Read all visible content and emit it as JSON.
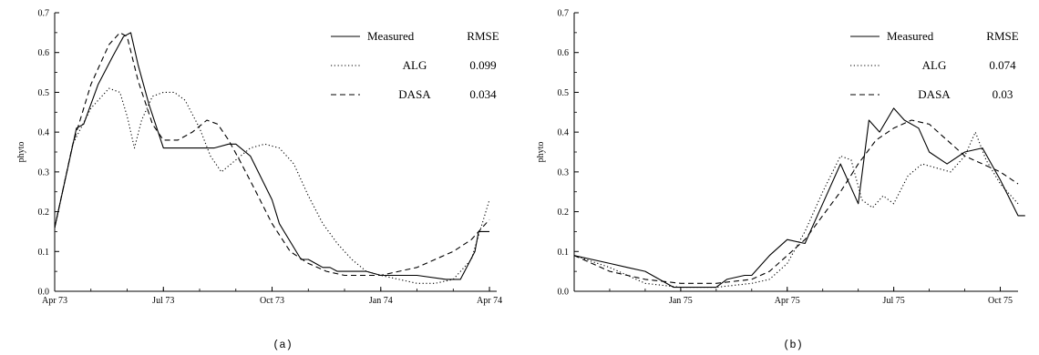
{
  "chart_data": [
    {
      "type": "line",
      "caption": "(a)",
      "ylabel": "phyto",
      "xlabel": "",
      "title": "",
      "x_unit": "months since Apr 73",
      "xlim": [
        0,
        12.2
      ],
      "ylim": [
        0,
        0.7
      ],
      "x_ticks": [
        {
          "x": 0,
          "label": "Apr 73"
        },
        {
          "x": 3,
          "label": "Jul 73"
        },
        {
          "x": 6,
          "label": "Oct 73"
        },
        {
          "x": 9,
          "label": "Jan 74"
        },
        {
          "x": 12,
          "label": "Apr 74"
        }
      ],
      "y_ticks": [
        "0.0",
        "0.1",
        "0.2",
        "0.3",
        "0.4",
        "0.5",
        "0.6",
        "0.7"
      ],
      "legend": {
        "header": "RMSE",
        "entries": [
          {
            "name": "Measured",
            "style": "solid",
            "rmse": ""
          },
          {
            "name": "ALG",
            "style": "dotted",
            "rmse": "0.099"
          },
          {
            "name": "DASA",
            "style": "dashed",
            "rmse": "0.034"
          }
        ]
      },
      "series": [
        {
          "name": "Measured",
          "style": "solid",
          "x": [
            0,
            0.6,
            0.8,
            1.2,
            1.6,
            1.9,
            2.1,
            2.3,
            2.6,
            3.0,
            3.4,
            4.0,
            4.4,
            4.8,
            5.0,
            5.4,
            6.0,
            6.2,
            6.8,
            7.0,
            7.2,
            7.4,
            7.6,
            7.8,
            8.0,
            8.6,
            9.0,
            9.6,
            10.0,
            10.8,
            11.2,
            11.6,
            11.7,
            12.0
          ],
          "y": [
            0.16,
            0.41,
            0.42,
            0.52,
            0.59,
            0.64,
            0.65,
            0.57,
            0.47,
            0.36,
            0.36,
            0.36,
            0.36,
            0.37,
            0.37,
            0.34,
            0.23,
            0.17,
            0.08,
            0.08,
            0.07,
            0.06,
            0.06,
            0.05,
            0.05,
            0.05,
            0.04,
            0.04,
            0.04,
            0.03,
            0.03,
            0.1,
            0.15,
            0.15
          ]
        },
        {
          "name": "ALG",
          "style": "dotted",
          "x": [
            0,
            0.5,
            1.0,
            1.5,
            1.8,
            2.0,
            2.2,
            2.4,
            2.7,
            3.0,
            3.3,
            3.6,
            4.0,
            4.3,
            4.6,
            5.0,
            5.4,
            5.8,
            6.2,
            6.6,
            7.0,
            7.4,
            7.8,
            8.2,
            8.6,
            9.0,
            9.5,
            10.0,
            10.5,
            11.0,
            11.5,
            12.0
          ],
          "y": [
            0.16,
            0.37,
            0.46,
            0.51,
            0.5,
            0.44,
            0.36,
            0.43,
            0.49,
            0.5,
            0.5,
            0.48,
            0.41,
            0.34,
            0.3,
            0.33,
            0.36,
            0.37,
            0.36,
            0.32,
            0.24,
            0.17,
            0.12,
            0.08,
            0.05,
            0.04,
            0.03,
            0.02,
            0.02,
            0.03,
            0.08,
            0.23
          ]
        },
        {
          "name": "DASA",
          "style": "dashed",
          "x": [
            0,
            0.5,
            1.0,
            1.5,
            1.8,
            2.0,
            2.3,
            2.7,
            3.0,
            3.4,
            3.8,
            4.2,
            4.5,
            4.8,
            5.1,
            5.5,
            6.0,
            6.5,
            7.0,
            7.5,
            8.0,
            8.5,
            9.0,
            9.5,
            10.0,
            10.5,
            11.0,
            11.5,
            12.0
          ],
          "y": [
            0.16,
            0.37,
            0.52,
            0.62,
            0.65,
            0.64,
            0.53,
            0.42,
            0.38,
            0.38,
            0.4,
            0.43,
            0.42,
            0.38,
            0.33,
            0.26,
            0.17,
            0.1,
            0.07,
            0.05,
            0.04,
            0.04,
            0.04,
            0.05,
            0.06,
            0.08,
            0.1,
            0.13,
            0.18
          ]
        }
      ]
    },
    {
      "type": "line",
      "caption": "(b)",
      "ylabel": "phyto",
      "xlabel": "",
      "title": "",
      "x_unit": "months since Oct 74",
      "xlim": [
        0,
        12.5
      ],
      "ylim": [
        0,
        0.7
      ],
      "x_ticks": [
        {
          "x": 3,
          "label": "Jan 75"
        },
        {
          "x": 6,
          "label": "Apr 75"
        },
        {
          "x": 9,
          "label": "Jul 75"
        },
        {
          "x": 12,
          "label": "Oct 75"
        }
      ],
      "y_ticks": [
        "0.0",
        "0.1",
        "0.2",
        "0.3",
        "0.4",
        "0.5",
        "0.6",
        "0.7"
      ],
      "legend": {
        "header": "RMSE",
        "entries": [
          {
            "name": "Measured",
            "style": "solid",
            "rmse": ""
          },
          {
            "name": "ALG",
            "style": "dotted",
            "rmse": "0.074"
          },
          {
            "name": "DASA",
            "style": "dashed",
            "rmse": "0.03"
          }
        ]
      },
      "series": [
        {
          "name": "Measured",
          "style": "solid",
          "x": [
            0,
            1.0,
            1.5,
            2.0,
            2.8,
            3.5,
            4.0,
            4.3,
            4.8,
            5.0,
            5.5,
            6.0,
            6.5,
            7.0,
            7.5,
            8.0,
            8.3,
            8.6,
            9.0,
            9.3,
            9.7,
            10.0,
            10.5,
            11.0,
            11.5,
            12.0,
            12.5,
            12.7
          ],
          "y": [
            0.09,
            0.07,
            0.06,
            0.05,
            0.01,
            0.01,
            0.01,
            0.03,
            0.04,
            0.04,
            0.09,
            0.13,
            0.12,
            0.22,
            0.32,
            0.22,
            0.43,
            0.4,
            0.46,
            0.43,
            0.41,
            0.35,
            0.32,
            0.35,
            0.36,
            0.28,
            0.19,
            0.19
          ]
        },
        {
          "name": "ALG",
          "style": "dotted",
          "x": [
            0,
            1.0,
            2.0,
            3.0,
            4.0,
            5.0,
            5.5,
            6.0,
            6.5,
            7.0,
            7.5,
            7.8,
            8.1,
            8.4,
            8.7,
            9.0,
            9.4,
            9.8,
            10.2,
            10.6,
            11.0,
            11.3,
            11.6,
            12.0,
            12.5
          ],
          "y": [
            0.09,
            0.06,
            0.02,
            0.01,
            0.01,
            0.02,
            0.03,
            0.07,
            0.15,
            0.25,
            0.34,
            0.33,
            0.23,
            0.21,
            0.24,
            0.22,
            0.29,
            0.32,
            0.31,
            0.3,
            0.34,
            0.4,
            0.33,
            0.27,
            0.22
          ]
        },
        {
          "name": "DASA",
          "style": "dashed",
          "x": [
            0,
            1.0,
            2.0,
            3.0,
            4.0,
            5.0,
            5.5,
            6.0,
            6.5,
            7.0,
            7.5,
            8.0,
            8.5,
            9.0,
            9.5,
            10.0,
            10.5,
            11.0,
            11.5,
            12.0,
            12.5
          ],
          "y": [
            0.09,
            0.05,
            0.03,
            0.02,
            0.02,
            0.03,
            0.05,
            0.09,
            0.13,
            0.19,
            0.25,
            0.32,
            0.38,
            0.41,
            0.43,
            0.42,
            0.38,
            0.34,
            0.32,
            0.3,
            0.27
          ]
        }
      ]
    }
  ]
}
